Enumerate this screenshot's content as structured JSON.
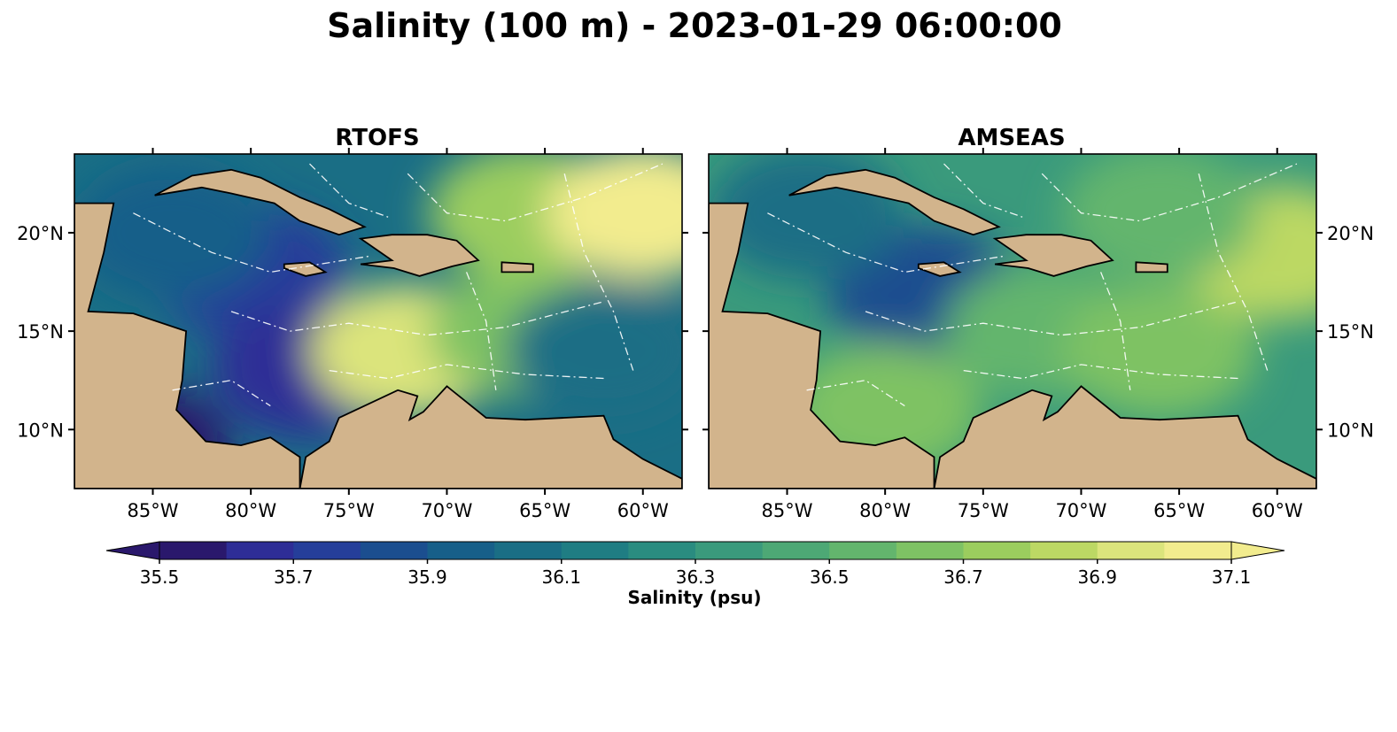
{
  "figure": {
    "title": "Salinity (100 m) - 2023-01-29 06:00:00"
  },
  "chart_data": [
    {
      "type": "heatmap",
      "title": "RTOFS",
      "map_extent": {
        "lon": [
          -89,
          -58
        ],
        "lat": [
          7,
          24
        ]
      },
      "x_ticks": [
        "85°W",
        "80°W",
        "75°W",
        "70°W",
        "65°W",
        "60°W"
      ],
      "y_ticks": [
        "20°N",
        "15°N",
        "10°N"
      ],
      "y_ticks_side": "left",
      "zones": [
        {
          "lon": -80,
          "lat": 18,
          "value": 35.7
        },
        {
          "lon": -77,
          "lat": 13,
          "value": 35.6
        },
        {
          "lon": -84,
          "lat": 20,
          "value": 35.9
        },
        {
          "lon": -72,
          "lat": 14,
          "value": 36.9
        },
        {
          "lon": -66,
          "lat": 15,
          "value": 36.6
        },
        {
          "lon": -62,
          "lat": 14,
          "value": 36.0
        },
        {
          "lon": -66,
          "lat": 21,
          "value": 36.7
        },
        {
          "lon": -60,
          "lat": 21,
          "value": 37.0
        },
        {
          "lon": -86,
          "lat": 9,
          "value": 35.5
        }
      ]
    },
    {
      "type": "heatmap",
      "title": "AMSEAS",
      "map_extent": {
        "lon": [
          -89,
          -58
        ],
        "lat": [
          7,
          24
        ]
      },
      "x_ticks": [
        "85°W",
        "80°W",
        "75°W",
        "70°W",
        "65°W",
        "60°W"
      ],
      "y_ticks": [
        "20°N",
        "15°N",
        "10°N"
      ],
      "y_ticks_side": "right",
      "zones": [
        {
          "lon": -78,
          "lat": 17,
          "value": 35.8
        },
        {
          "lon": -84,
          "lat": 21,
          "value": 36.0
        },
        {
          "lon": -72,
          "lat": 15,
          "value": 36.5
        },
        {
          "lon": -66,
          "lat": 14,
          "value": 36.6
        },
        {
          "lon": -60,
          "lat": 19,
          "value": 36.8
        },
        {
          "lon": -66,
          "lat": 21,
          "value": 36.5
        },
        {
          "lon": -80,
          "lat": 11,
          "value": 36.6
        }
      ]
    }
  ],
  "colorbar": {
    "label": "Salinity (psu)",
    "min": 35.5,
    "max": 37.1,
    "step": 0.1,
    "tick_labels": [
      "35.5",
      "35.7",
      "35.9",
      "36.1",
      "36.3",
      "36.5",
      "36.7",
      "36.9",
      "37.1"
    ],
    "extend": "both",
    "colors": [
      "#2a186c",
      "#2e2d96",
      "#253e9a",
      "#1b4e8f",
      "#175f89",
      "#1a6e85",
      "#1f7d83",
      "#2a8c80",
      "#3a9a7c",
      "#4da875",
      "#63b56d",
      "#7ec264",
      "#9bcd5e",
      "#bcd864",
      "#dbe47c",
      "#f2ec8e"
    ]
  },
  "map_colors": {
    "land": "#d2b48c",
    "shelf_water": "#9ab6e0",
    "coastline": "#000000",
    "eez_lines": "#ffffff",
    "borders": "#000000"
  }
}
